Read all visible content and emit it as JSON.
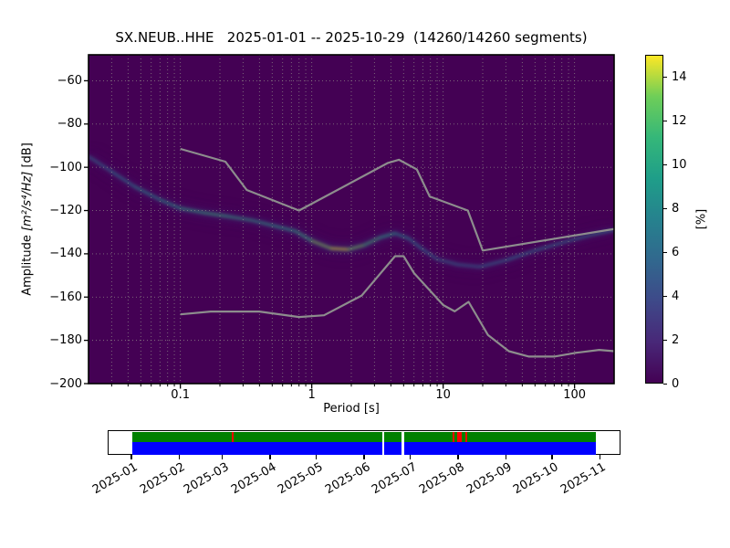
{
  "title": "SX.NEUB..HHE   2025-01-01 -- 2025-10-29  (14260/14260 segments)",
  "x_axis": {
    "label": "Period [s]",
    "scale": "log",
    "lim": [
      0.02,
      200
    ],
    "major_ticks": [
      0.1,
      1,
      10,
      100
    ],
    "major_tick_labels": [
      "0.1",
      "1",
      "10",
      "100"
    ]
  },
  "y_axis": {
    "label_prefix": "Amplitude ",
    "label_math": "[m²/s⁴/Hz]",
    "label_unit": " [dB]",
    "lim": [
      -200,
      -48
    ],
    "ticks": [
      -60,
      -80,
      -100,
      -120,
      -140,
      -160,
      -180,
      -200
    ]
  },
  "colorbar": {
    "label": "[%]",
    "vmin": 0,
    "vmax": 15,
    "ticks": [
      0,
      2,
      4,
      6,
      8,
      10,
      12,
      14
    ],
    "colormap": "viridis",
    "stops": [
      [
        0,
        "#440154"
      ],
      [
        0.125,
        "#482878"
      ],
      [
        0.25,
        "#3e4989"
      ],
      [
        0.375,
        "#31688e"
      ],
      [
        0.5,
        "#26828e"
      ],
      [
        0.625,
        "#1f9e89"
      ],
      [
        0.75,
        "#35b779"
      ],
      [
        0.875,
        "#6ece58"
      ],
      [
        1,
        "#fde725"
      ]
    ]
  },
  "chart_data": {
    "type": "heatmap",
    "description": "Probabilistic power spectral density (PPSD): probability [%] of PSD amplitude vs period, viridis colormap on dark-purple (0%) background, with Peterson NHNM/NLNM reference curves in gray.",
    "xlim": [
      0.02,
      200
    ],
    "ylim": [
      -200,
      -48
    ],
    "x_scale": "log",
    "vmin": 0,
    "vmax": 15,
    "unit": "%",
    "background_color": "#440154",
    "grid_color": "#96968c",
    "mode_ridge": {
      "comment": "High-probability band: [period_s, amplitude_dB, probability_percent, half_spread_dB]",
      "points": [
        [
          0.02,
          -95,
          6,
          10
        ],
        [
          0.03,
          -102,
          7,
          9
        ],
        [
          0.045,
          -109,
          8,
          8
        ],
        [
          0.07,
          -115,
          9,
          7
        ],
        [
          0.1,
          -119,
          10,
          6
        ],
        [
          0.15,
          -121,
          11,
          5.5
        ],
        [
          0.22,
          -122.5,
          11,
          5.5
        ],
        [
          0.35,
          -124.5,
          10,
          5.5
        ],
        [
          0.55,
          -127.5,
          10,
          5
        ],
        [
          0.75,
          -129.5,
          10,
          5
        ],
        [
          1.0,
          -134,
          12,
          5
        ],
        [
          1.4,
          -137.5,
          15,
          4.5
        ],
        [
          1.9,
          -138,
          14.5,
          4.5
        ],
        [
          2.5,
          -136,
          12,
          5
        ],
        [
          3.3,
          -132.5,
          11,
          5
        ],
        [
          4.3,
          -130.5,
          9,
          6.5
        ],
        [
          5.5,
          -133,
          8,
          9
        ],
        [
          7.0,
          -138,
          7,
          11
        ],
        [
          9.0,
          -142.5,
          6.5,
          12
        ],
        [
          13,
          -145,
          6,
          12
        ],
        [
          19,
          -146,
          6,
          11
        ],
        [
          30,
          -143,
          6.5,
          9
        ],
        [
          50,
          -138.5,
          7,
          8
        ],
        [
          90,
          -134,
          7,
          7
        ],
        [
          140,
          -131,
          7,
          6.5
        ],
        [
          200,
          -129,
          7,
          6.5
        ]
      ]
    },
    "noise_models": {
      "color": "#8d8d8d",
      "nhnm": [
        [
          0.1,
          -91.5
        ],
        [
          0.22,
          -97.4
        ],
        [
          0.32,
          -110.5
        ],
        [
          0.8,
          -120.0
        ],
        [
          3.8,
          -98.0
        ],
        [
          4.6,
          -96.5
        ],
        [
          6.3,
          -101.0
        ],
        [
          7.9,
          -113.5
        ],
        [
          15.4,
          -120.0
        ],
        [
          20.0,
          -138.5
        ],
        [
          200.0,
          -128.5
        ]
      ],
      "nlnm": [
        [
          0.1,
          -168.0
        ],
        [
          0.17,
          -166.7
        ],
        [
          0.4,
          -166.7
        ],
        [
          0.8,
          -169.2
        ],
        [
          1.24,
          -168.4
        ],
        [
          2.4,
          -159.3
        ],
        [
          4.3,
          -141.1
        ],
        [
          5.0,
          -141.1
        ],
        [
          6.0,
          -148.9
        ],
        [
          10.0,
          -163.7
        ],
        [
          12.25,
          -166.6
        ],
        [
          15.6,
          -162.2
        ],
        [
          21.9,
          -177.5
        ],
        [
          31.6,
          -185.0
        ],
        [
          45.0,
          -187.5
        ],
        [
          70.0,
          -187.5
        ],
        [
          101.0,
          -185.8
        ],
        [
          154.0,
          -184.4
        ],
        [
          200.0,
          -185.0
        ]
      ]
    }
  },
  "timeline": {
    "start_date": "2025-01-01",
    "end_date": "2025-10-29",
    "row_colors": {
      "top": "#008000",
      "bottom": "#0000ff"
    },
    "mark_color": "#ff0000",
    "gap_color": "#ffffff",
    "coverage": {
      "start_day": 0,
      "end_day": 301
    },
    "month_ticks": [
      {
        "label": "2025-01",
        "day": 0
      },
      {
        "label": "2025-02",
        "day": 31
      },
      {
        "label": "2025-03",
        "day": 59
      },
      {
        "label": "2025-04",
        "day": 90
      },
      {
        "label": "2025-05",
        "day": 120
      },
      {
        "label": "2025-06",
        "day": 151
      },
      {
        "label": "2025-07",
        "day": 181
      },
      {
        "label": "2025-08",
        "day": 212
      },
      {
        "label": "2025-09",
        "day": 243
      },
      {
        "label": "2025-10",
        "day": 273
      },
      {
        "label": "2025-11",
        "day": 304
      }
    ],
    "gaps": [
      {
        "day": 163,
        "width_days": 1.6
      },
      {
        "day": 175.5,
        "width_days": 1.6
      }
    ],
    "marks": [
      {
        "day": 65,
        "width_days": 1.2
      },
      {
        "day": 208.5,
        "width_days": 1.2
      },
      {
        "day": 212.5,
        "width_days": 3
      },
      {
        "day": 217,
        "width_days": 1.2
      }
    ]
  }
}
